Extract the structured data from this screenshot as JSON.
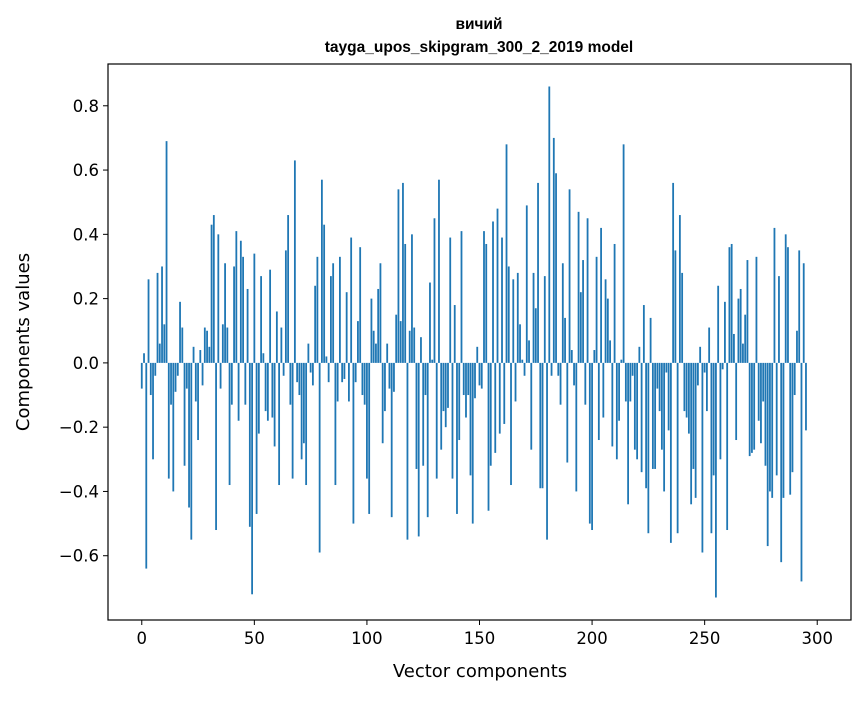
{
  "chart_data": {
    "type": "bar",
    "title_line1": "вичий",
    "title_line2": "tayga_upos_skipgram_300_2_2019 model",
    "xlabel": "Vector components",
    "ylabel": "Components values",
    "xlim": [
      -15,
      315
    ],
    "ylim": [
      -0.8,
      0.93
    ],
    "xticks": [
      0,
      50,
      100,
      150,
      200,
      250,
      300
    ],
    "xtick_labels": [
      "0",
      "50",
      "100",
      "150",
      "200",
      "250",
      "300"
    ],
    "yticks": [
      -0.6,
      -0.4,
      -0.2,
      0.0,
      0.2,
      0.4,
      0.6,
      0.8
    ],
    "ytick_labels": [
      "−0.6",
      "−0.4",
      "−0.2",
      "0.0",
      "0.2",
      "0.4",
      "0.6",
      "0.8"
    ],
    "bar_color": "#1f77b4",
    "grid": false,
    "values": [
      -0.08,
      0.03,
      -0.64,
      0.26,
      -0.1,
      -0.3,
      -0.04,
      0.28,
      0.06,
      0.3,
      0.12,
      0.69,
      -0.36,
      -0.13,
      -0.4,
      -0.09,
      -0.04,
      0.19,
      0.11,
      -0.32,
      -0.08,
      -0.45,
      -0.55,
      0.05,
      -0.12,
      -0.24,
      0.04,
      -0.07,
      0.11,
      0.1,
      0.05,
      0.43,
      0.46,
      -0.52,
      0.4,
      -0.08,
      0.12,
      0.31,
      0.11,
      -0.38,
      -0.13,
      0.3,
      0.41,
      -0.18,
      0.38,
      0.33,
      -0.13,
      0.23,
      -0.51,
      -0.72,
      0.34,
      -0.47,
      -0.22,
      0.27,
      0.03,
      -0.15,
      -0.18,
      0.29,
      -0.17,
      -0.26,
      0.16,
      -0.38,
      0.11,
      -0.04,
      0.35,
      0.46,
      -0.13,
      -0.36,
      0.63,
      -0.06,
      -0.1,
      -0.3,
      -0.25,
      -0.38,
      0.06,
      -0.03,
      -0.07,
      0.24,
      0.33,
      -0.59,
      0.57,
      0.43,
      0.02,
      -0.06,
      0.27,
      0.31,
      -0.38,
      -0.12,
      0.33,
      -0.06,
      -0.05,
      0.22,
      -0.12,
      0.39,
      -0.5,
      -0.06,
      0.13,
      0.36,
      -0.1,
      -0.13,
      -0.36,
      -0.47,
      0.2,
      0.1,
      0.06,
      0.23,
      0.31,
      -0.25,
      -0.15,
      0.06,
      -0.08,
      -0.48,
      -0.09,
      0.15,
      0.54,
      0.13,
      0.56,
      0.37,
      -0.55,
      0.1,
      0.4,
      0.11,
      -0.33,
      -0.54,
      0.08,
      -0.32,
      -0.1,
      -0.48,
      0.25,
      0.01,
      0.45,
      -0.36,
      0.57,
      -0.27,
      -0.15,
      -0.2,
      -0.14,
      0.39,
      -0.36,
      0.18,
      -0.47,
      -0.24,
      0.41,
      -0.1,
      -0.17,
      -0.1,
      -0.35,
      -0.5,
      -0.11,
      0.05,
      -0.07,
      -0.08,
      0.41,
      0.37,
      -0.46,
      -0.32,
      0.44,
      -0.28,
      0.48,
      -0.22,
      0.39,
      -0.19,
      0.68,
      0.3,
      -0.38,
      0.26,
      -0.12,
      0.28,
      0.12,
      0.01,
      -0.04,
      0.49,
      0.07,
      -0.27,
      0.28,
      0.17,
      0.56,
      -0.39,
      -0.39,
      0.27,
      -0.55,
      0.86,
      -0.04,
      0.7,
      0.59,
      -0.04,
      -0.13,
      0.31,
      0.14,
      -0.31,
      0.54,
      0.04,
      -0.07,
      -0.4,
      0.47,
      0.22,
      0.32,
      -0.13,
      0.45,
      -0.5,
      -0.52,
      0.04,
      0.33,
      -0.24,
      0.42,
      -0.17,
      0.26,
      0.2,
      0.07,
      -0.26,
      0.37,
      -0.3,
      -0.18,
      0.01,
      0.68,
      -0.12,
      -0.44,
      -0.12,
      -0.04,
      -0.27,
      -0.3,
      0.05,
      -0.34,
      0.18,
      -0.39,
      -0.53,
      0.14,
      -0.33,
      -0.33,
      -0.08,
      -0.15,
      -0.27,
      -0.4,
      -0.03,
      -0.21,
      -0.56,
      0.56,
      0.35,
      -0.53,
      0.46,
      0.28,
      -0.15,
      -0.17,
      -0.22,
      -0.44,
      -0.33,
      -0.42,
      -0.07,
      0.05,
      -0.59,
      -0.03,
      -0.15,
      0.11,
      -0.53,
      -0.35,
      -0.73,
      0.24,
      -0.3,
      -0.02,
      0.19,
      -0.52,
      0.36,
      0.37,
      0.09,
      -0.24,
      0.2,
      0.23,
      0.06,
      0.15,
      0.32,
      -0.29,
      -0.28,
      -0.27,
      0.33,
      -0.18,
      -0.25,
      -0.12,
      -0.32,
      -0.57,
      -0.4,
      -0.42,
      0.42,
      -0.35,
      0.27,
      -0.62,
      -0.42,
      0.4,
      0.36,
      -0.41,
      -0.34,
      -0.1,
      0.1,
      0.35,
      -0.68,
      0.31,
      -0.21
    ]
  }
}
